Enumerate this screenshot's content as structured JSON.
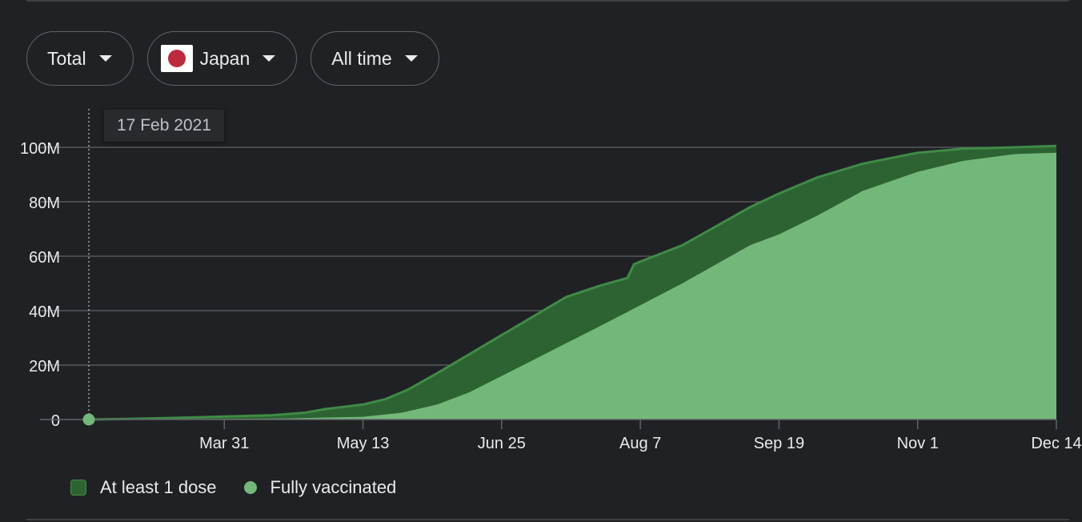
{
  "filters": {
    "metric": {
      "label": "Total"
    },
    "country": {
      "label": "Japan",
      "flag_icon": "japan-flag-icon"
    },
    "range": {
      "label": "All time"
    }
  },
  "tooltip": {
    "date": "17 Feb 2021"
  },
  "colors": {
    "background": "#202124",
    "at_least_one": "#2d6332",
    "at_least_one_edge": "#3f8b46",
    "fully": "#73b87a",
    "grid": "#5f6368",
    "axis_text": "#e8eaed"
  },
  "chart_data": {
    "type": "area",
    "title": "",
    "xlabel": "",
    "ylabel": "",
    "x_start": "2021-02-17",
    "x_end": "2021-12-14",
    "x_tick_labels": [
      "Mar 31",
      "May 13",
      "Jun 25",
      "Aug 7",
      "Sep 19",
      "Nov 1",
      "Dec 14"
    ],
    "x_tick_dates": [
      "2021-03-31",
      "2021-05-13",
      "2021-06-25",
      "2021-08-07",
      "2021-09-19",
      "2021-11-01",
      "2021-12-14"
    ],
    "y_ticks": [
      0,
      20000000,
      40000000,
      60000000,
      80000000,
      100000000
    ],
    "y_tick_labels": [
      "0",
      "20M",
      "40M",
      "60M",
      "80M",
      "100M"
    ],
    "ylim": [
      0,
      100000000
    ],
    "grid": true,
    "legend_position": "bottom-left",
    "series": [
      {
        "name": "At least 1 dose",
        "color": "#2d6332",
        "points": [
          [
            "2021-02-17",
            0
          ],
          [
            "2021-03-01",
            200000
          ],
          [
            "2021-03-15",
            600000
          ],
          [
            "2021-03-31",
            1100000
          ],
          [
            "2021-04-15",
            1600000
          ],
          [
            "2021-04-25",
            2500000
          ],
          [
            "2021-05-01",
            3800000
          ],
          [
            "2021-05-13",
            5500000
          ],
          [
            "2021-05-20",
            7500000
          ],
          [
            "2021-05-27",
            11000000
          ],
          [
            "2021-06-05",
            17000000
          ],
          [
            "2021-06-15",
            24000000
          ],
          [
            "2021-06-25",
            31000000
          ],
          [
            "2021-07-05",
            38000000
          ],
          [
            "2021-07-15",
            45000000
          ],
          [
            "2021-07-25",
            49000000
          ],
          [
            "2021-08-03",
            52000000
          ],
          [
            "2021-08-05",
            57000000
          ],
          [
            "2021-08-07",
            58000000
          ],
          [
            "2021-08-20",
            64000000
          ],
          [
            "2021-09-01",
            72000000
          ],
          [
            "2021-09-10",
            78000000
          ],
          [
            "2021-09-19",
            83000000
          ],
          [
            "2021-10-01",
            89000000
          ],
          [
            "2021-10-15",
            94000000
          ],
          [
            "2021-11-01",
            98000000
          ],
          [
            "2021-11-15",
            99500000
          ],
          [
            "2021-12-01",
            100000000
          ],
          [
            "2021-12-14",
            100500000
          ]
        ]
      },
      {
        "name": "Fully vaccinated",
        "color": "#73b87a",
        "points": [
          [
            "2021-02-17",
            0
          ],
          [
            "2021-03-31",
            200000
          ],
          [
            "2021-04-20",
            400000
          ],
          [
            "2021-05-13",
            1000000
          ],
          [
            "2021-05-25",
            2500000
          ],
          [
            "2021-06-05",
            5500000
          ],
          [
            "2021-06-15",
            10000000
          ],
          [
            "2021-06-25",
            16000000
          ],
          [
            "2021-07-05",
            22000000
          ],
          [
            "2021-07-15",
            28000000
          ],
          [
            "2021-07-25",
            34000000
          ],
          [
            "2021-08-07",
            42000000
          ],
          [
            "2021-08-20",
            50000000
          ],
          [
            "2021-09-01",
            58000000
          ],
          [
            "2021-09-10",
            64000000
          ],
          [
            "2021-09-19",
            68000000
          ],
          [
            "2021-10-01",
            75000000
          ],
          [
            "2021-10-15",
            84000000
          ],
          [
            "2021-11-01",
            91000000
          ],
          [
            "2021-11-15",
            95000000
          ],
          [
            "2021-12-01",
            97500000
          ],
          [
            "2021-12-14",
            98000000
          ]
        ]
      }
    ]
  }
}
